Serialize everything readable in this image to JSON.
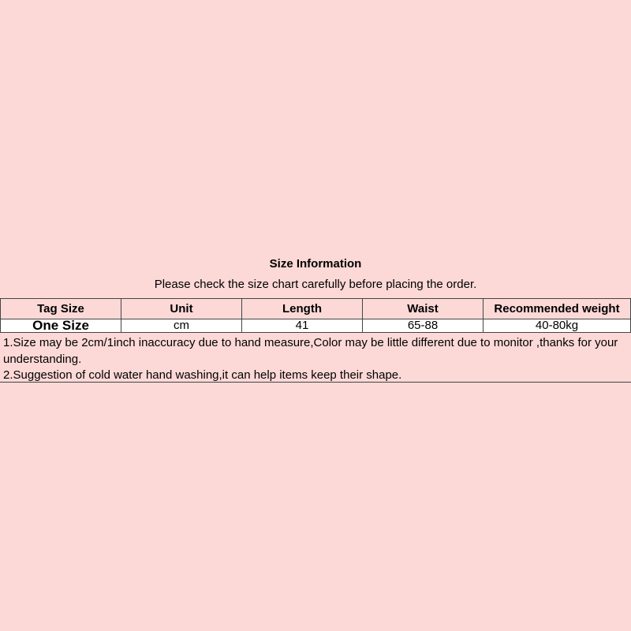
{
  "title": "Size Information",
  "subtitle": "Please check the size chart carefully before placing the order.",
  "table": {
    "headers": [
      "Tag Size",
      "Unit",
      "Length",
      "Waist",
      "Recommended weight"
    ],
    "rows": [
      [
        "One Size",
        "cm",
        "41",
        "65-88",
        "40-80kg"
      ]
    ]
  },
  "notes": [
    "1.Size may be 2cm/1inch inaccuracy due to hand measure,Color may be little different due to monitor ,thanks for your understanding.",
    "2.Suggestion of cold water hand washing,it can help items keep their shape."
  ],
  "colors": {
    "background": "#fcd9d7",
    "row": "#ffffff"
  }
}
